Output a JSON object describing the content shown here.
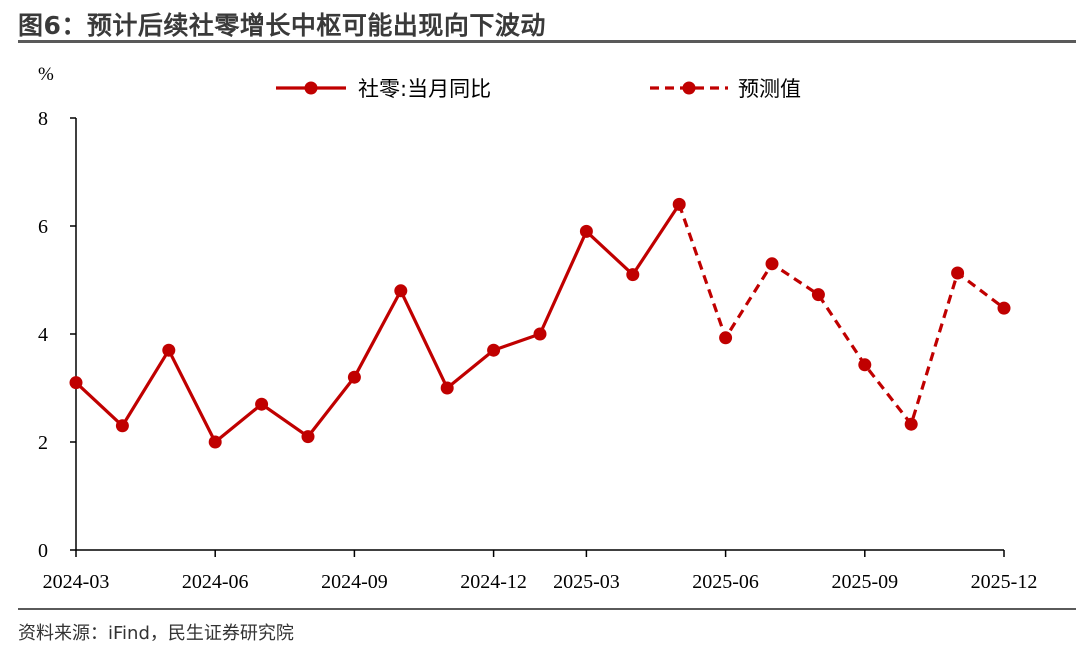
{
  "title": "图6：预计后续社零增长中枢可能出现向下波动",
  "source": "资料来源：iFind，民生证券研究院",
  "colors": {
    "series": "#c00000",
    "axis": "#000000",
    "rule": "#5a5a5a"
  },
  "chart_data": {
    "type": "line",
    "yunit": "%",
    "ylim": [
      0,
      8
    ],
    "yticks": [
      0,
      2,
      4,
      6,
      8
    ],
    "xticks": [
      "2024-03",
      "2024-06",
      "2024-09",
      "2024-12",
      "2025-03",
      "2025-06",
      "2025-09",
      "2025-12"
    ],
    "x": [
      "2024-03",
      "2024-04",
      "2024-05",
      "2024-06",
      "2024-07",
      "2024-08",
      "2024-09",
      "2024-10",
      "2024-11",
      "2024-12",
      "2025-02",
      "2025-03",
      "2025-04",
      "2025-05",
      "2025-06",
      "2025-07",
      "2025-08",
      "2025-09",
      "2025-10",
      "2025-11",
      "2025-12"
    ],
    "grid": false,
    "legend_position": "top",
    "series": [
      {
        "name": "社零:当月同比",
        "style": "solid",
        "x": [
          "2024-03",
          "2024-04",
          "2024-05",
          "2024-06",
          "2024-07",
          "2024-08",
          "2024-09",
          "2024-10",
          "2024-11",
          "2024-12",
          "2025-02",
          "2025-03",
          "2025-04",
          "2025-05"
        ],
        "values": [
          3.1,
          2.3,
          3.7,
          2.0,
          2.7,
          2.1,
          3.2,
          4.8,
          3.0,
          3.7,
          4.0,
          5.9,
          5.1,
          6.4
        ]
      },
      {
        "name": "预测值",
        "style": "dashed",
        "x": [
          "2025-05",
          "2025-06",
          "2025-07",
          "2025-08",
          "2025-09",
          "2025-10",
          "2025-11",
          "2025-12"
        ],
        "values": [
          6.4,
          3.93,
          5.3,
          4.73,
          3.43,
          2.33,
          5.13,
          4.48
        ]
      }
    ]
  }
}
